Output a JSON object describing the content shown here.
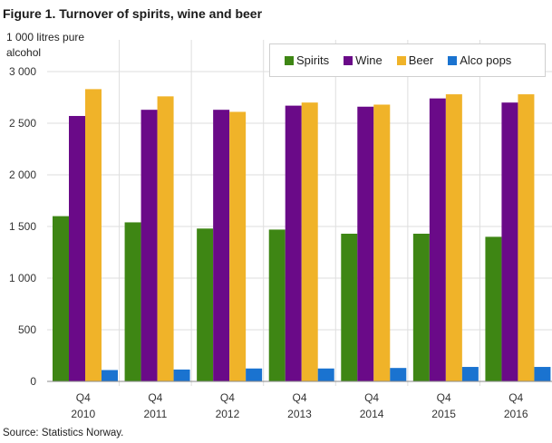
{
  "source": "Source: Statistics Norway.",
  "chart_data": {
    "type": "bar",
    "title": "Figure 1. Turnover of spirits, wine and beer",
    "xlabel": "",
    "ylabel": "1 000 litres pure alcohol",
    "categories": [
      "Q4 2010",
      "Q4 2011",
      "Q4 2012",
      "Q4 2013",
      "Q4 2014",
      "Q4 2015",
      "Q4 2016"
    ],
    "series": [
      {
        "name": "Spirits",
        "color": "#3e8614",
        "values": [
          1600,
          1540,
          1480,
          1470,
          1430,
          1430,
          1400
        ]
      },
      {
        "name": "Wine",
        "color": "#6a0a88",
        "values": [
          2570,
          2630,
          2630,
          2670,
          2660,
          2740,
          2700
        ]
      },
      {
        "name": "Beer",
        "color": "#f0b329",
        "values": [
          2830,
          2760,
          2610,
          2700,
          2680,
          2780,
          2780
        ]
      },
      {
        "name": "Alco pops",
        "color": "#1a73d0",
        "values": [
          110,
          115,
          125,
          125,
          130,
          140,
          140
        ]
      }
    ],
    "ylim": [
      0,
      3000
    ],
    "yticks": [
      0,
      500,
      1000,
      1500,
      2000,
      2500,
      3000
    ],
    "ytick_labels": [
      "0",
      "500",
      "1 000",
      "1 500",
      "2 000",
      "2 500",
      "3 000"
    ],
    "grid": true,
    "legend_position": "top-right"
  }
}
